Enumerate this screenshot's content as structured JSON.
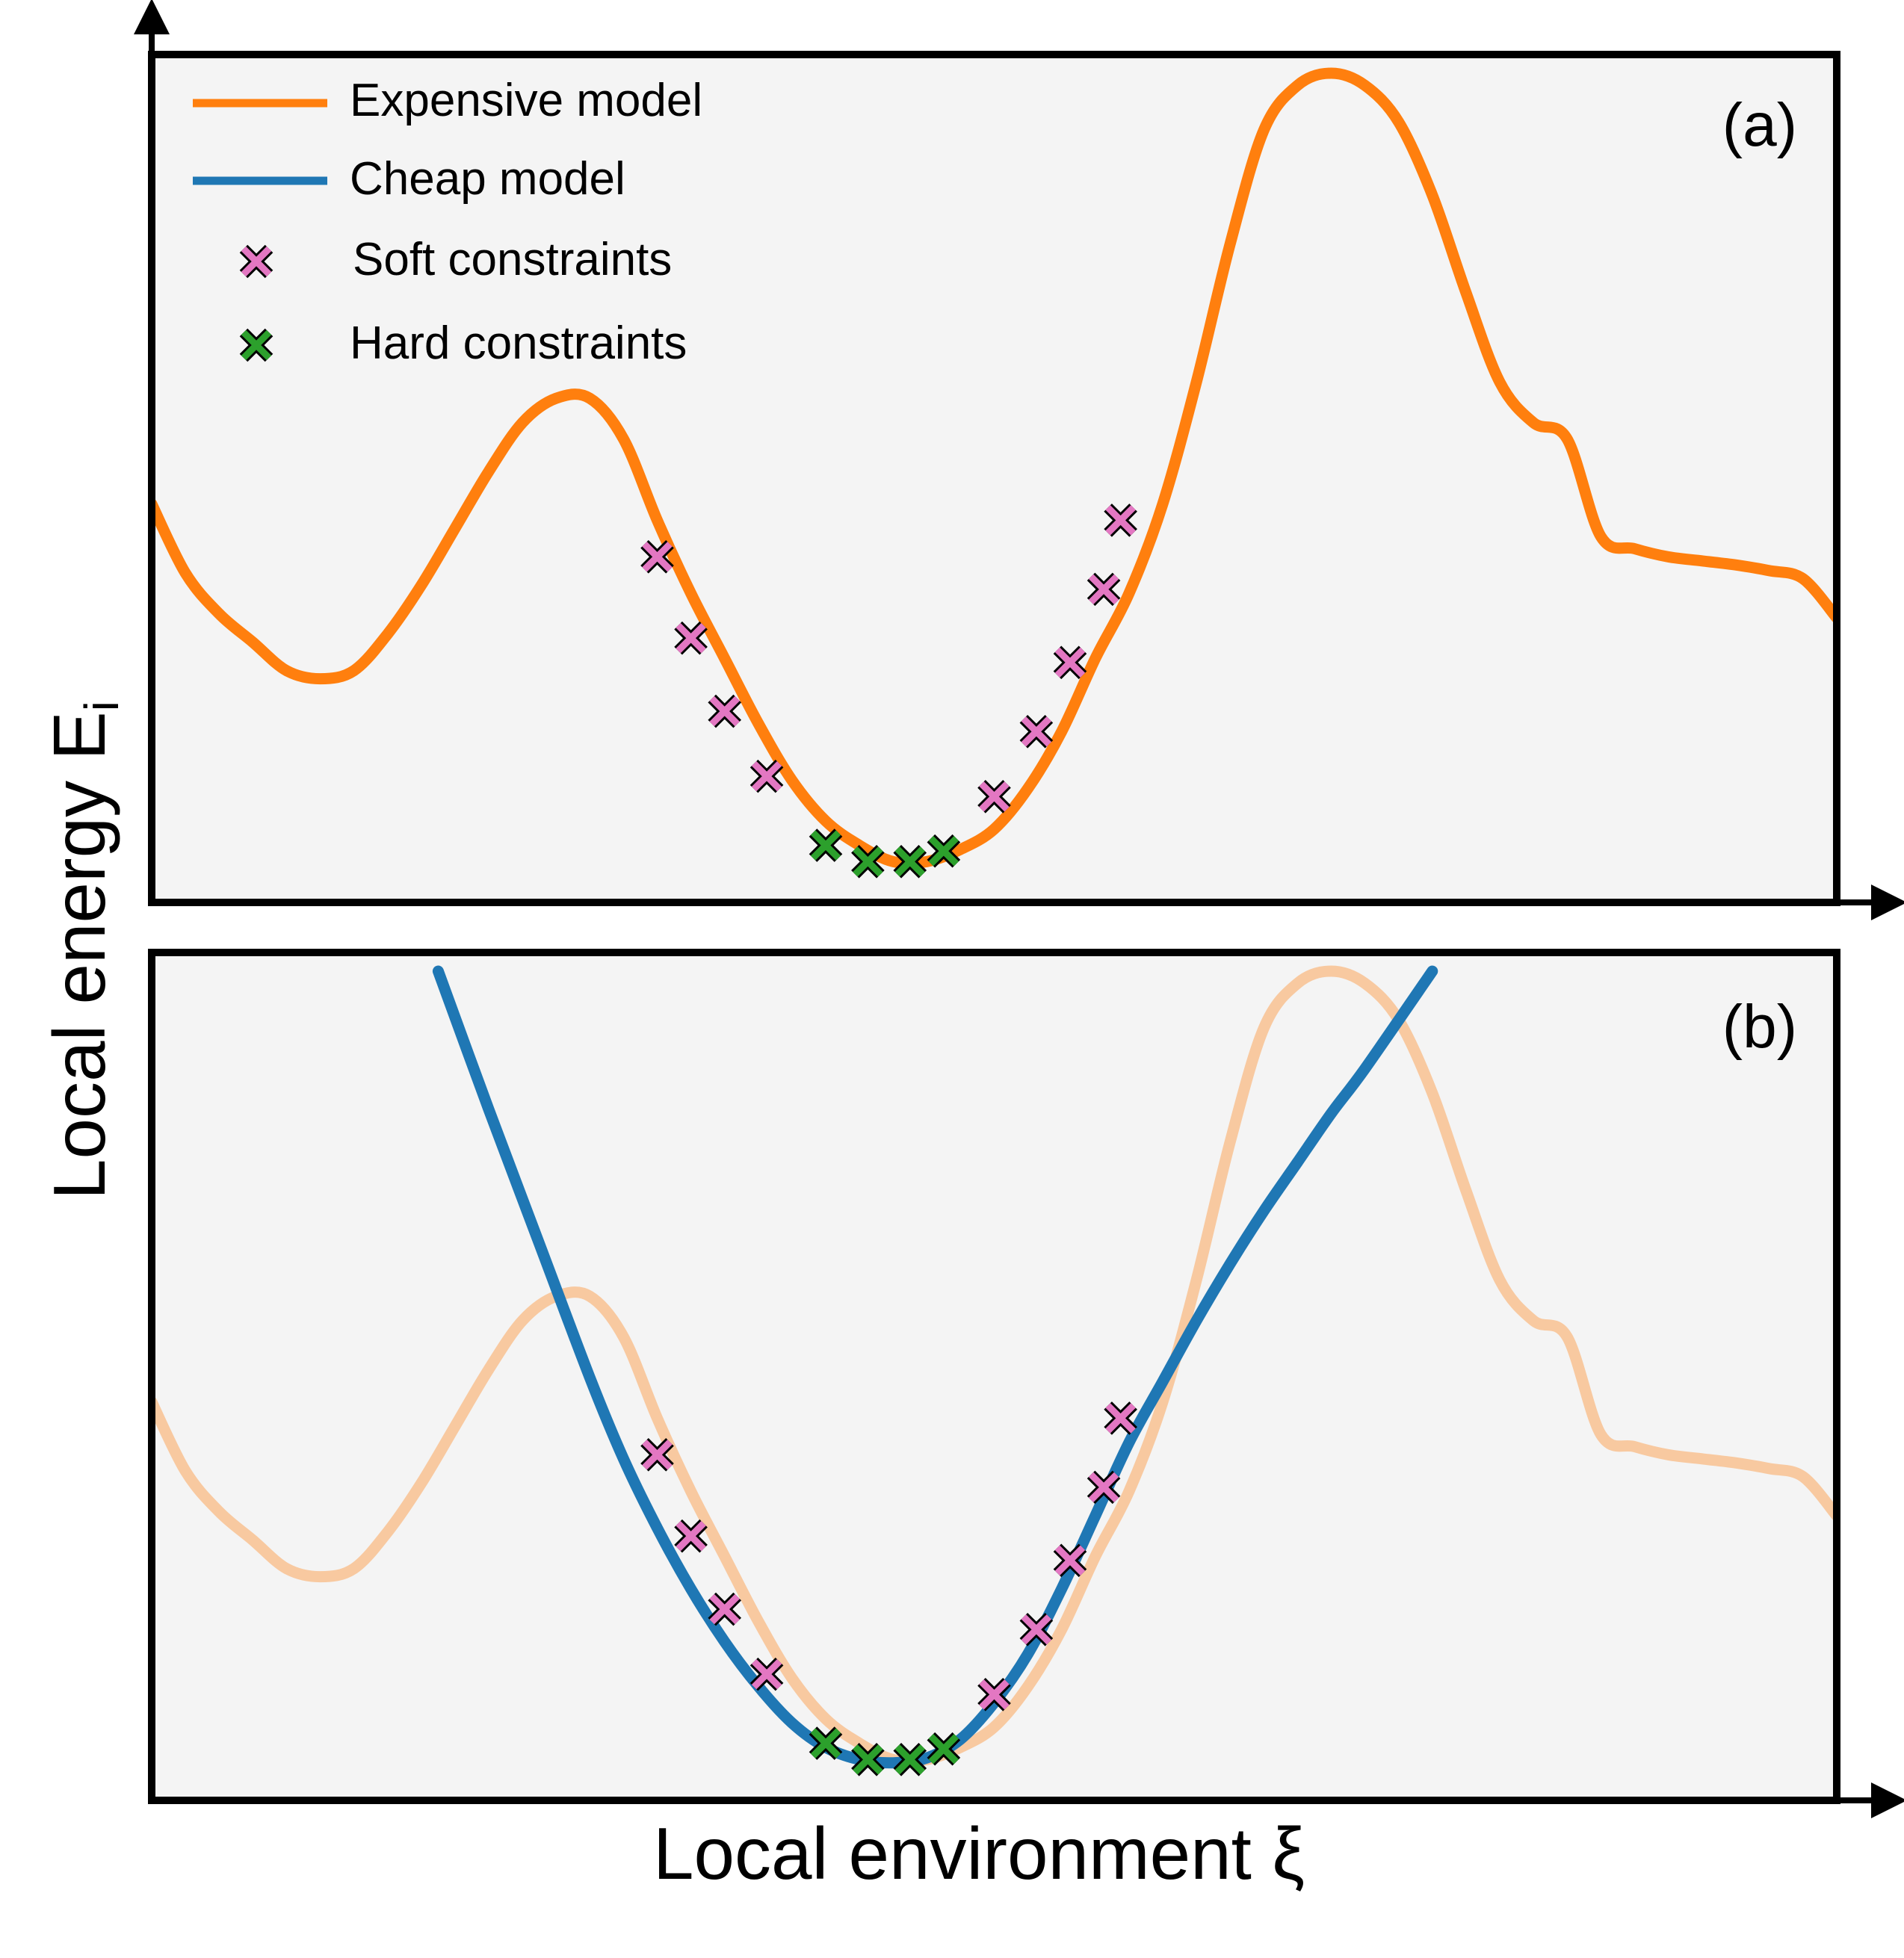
{
  "chart_data": {
    "type": "line",
    "axes": {
      "ylabel": "Local energy E",
      "ylabel_subscript": "i",
      "xlabel": "Local environment ξ",
      "xlim": [
        0,
        100
      ],
      "ylim": [
        0,
        100
      ],
      "ticks": "none"
    },
    "legend": {
      "placement": "top-left",
      "entries": [
        {
          "label": "Expensive model",
          "kind": "line",
          "color": "#ff7f0e"
        },
        {
          "label": "Cheap model",
          "kind": "line",
          "color": "#1f77b4"
        },
        {
          "label": "Soft constraints",
          "kind": "marker",
          "color": "#e377c2"
        },
        {
          "label": "Hard constraints",
          "kind": "marker",
          "color": "#2ca02c"
        }
      ]
    },
    "colors": {
      "expensive": "#ff7f0e",
      "expensive_faded": "#f8c9a0",
      "cheap": "#1f77b4",
      "soft": "#e377c2",
      "hard": "#2ca02c",
      "panel_bg": "#f4f4f4"
    },
    "panels": [
      {
        "label": "(a)",
        "series": [
          {
            "name": "Expensive model",
            "x": [
              0,
              2,
              4,
              6,
              8,
              10,
              12,
              14,
              16,
              18,
              20,
              22,
              24,
              26,
              28,
              30,
              32,
              34,
              36,
              38,
              40,
              42,
              44,
              46,
              48,
              50,
              52,
              54,
              56,
              58,
              60,
              62,
              64,
              66,
              68,
              70,
              72,
              74,
              76,
              78,
              80,
              82,
              84,
              86,
              88,
              90,
              92,
              94,
              96,
              98,
              100
            ],
            "y": [
              47,
              38.5,
              33.5,
              30,
              26.5,
              25.5,
              26.5,
              31,
              37,
              44,
              51,
              57,
              60,
              60,
              55,
              45,
              36,
              28,
              20,
              13,
              8,
              5,
              3,
              3,
              4.5,
              7,
              12,
              19,
              28,
              36,
              47,
              62,
              79,
              93,
              98.5,
              100,
              98.5,
              94,
              85,
              73,
              62,
              57,
              55,
              43,
              41.5,
              40.5,
              40,
              39.5,
              38.8,
              37.8,
              33
            ]
          }
        ],
        "soft_constraints": [
          [
            30,
            40.5
          ],
          [
            32,
            30.5
          ],
          [
            34,
            21.5
          ],
          [
            36.5,
            13.5
          ],
          [
            50,
            11
          ],
          [
            52.5,
            19
          ],
          [
            54.5,
            27.5
          ],
          [
            56.5,
            36.5
          ],
          [
            57.5,
            45
          ]
        ],
        "hard_constraints": [
          [
            40,
            5
          ],
          [
            42.5,
            3
          ],
          [
            45,
            3
          ],
          [
            47,
            4.3
          ]
        ]
      },
      {
        "label": "(b)",
        "series": [
          {
            "name": "Expensive model",
            "x": [
              0,
              2,
              4,
              6,
              8,
              10,
              12,
              14,
              16,
              18,
              20,
              22,
              24,
              26,
              28,
              30,
              32,
              34,
              36,
              38,
              40,
              42,
              44,
              46,
              48,
              50,
              52,
              54,
              56,
              58,
              60,
              62,
              64,
              66,
              68,
              70,
              72,
              74,
              76,
              78,
              80,
              82,
              84,
              86,
              88,
              90,
              92,
              94,
              96,
              98,
              100
            ],
            "y": [
              47,
              38.5,
              33.5,
              30,
              26.5,
              25.5,
              26.5,
              31,
              37,
              44,
              51,
              57,
              60,
              60,
              55,
              45,
              36,
              28,
              20,
              13,
              8,
              5,
              3,
              3,
              4.5,
              7,
              12,
              19,
              28,
              36,
              47,
              62,
              79,
              93,
              98.5,
              100,
              98.5,
              94,
              85,
              73,
              62,
              57,
              55,
              43,
              41.5,
              40.5,
              40,
              39.5,
              38.8,
              37.8,
              33
            ]
          },
          {
            "name": "Cheap model",
            "x": [
              17,
              20,
              23,
              26,
              28,
              30,
              32,
              34,
              36,
              38,
              40,
              42,
              44,
              46,
              48,
              50,
              52,
              54,
              56,
              58,
              60,
              62,
              64,
              66,
              68,
              70,
              72,
              76
            ],
            "y": [
              100,
              83,
              66.5,
              50,
              40,
              31.5,
              24,
              17.5,
              12,
              7.5,
              4.5,
              3,
              2.6,
              3.2,
              5.5,
              10,
              16,
              24,
              33,
              42,
              49.5,
              57,
              64,
              70.5,
              76.5,
              82.5,
              88,
              100
            ]
          }
        ],
        "soft_constraints": [
          [
            30,
            40.5
          ],
          [
            32,
            30.5
          ],
          [
            34,
            21.5
          ],
          [
            36.5,
            13.5
          ],
          [
            50,
            11
          ],
          [
            52.5,
            19
          ],
          [
            54.5,
            27.5
          ],
          [
            56.5,
            36.5
          ],
          [
            57.5,
            45
          ]
        ],
        "hard_constraints": [
          [
            40,
            5
          ],
          [
            42.5,
            3
          ],
          [
            45,
            3
          ],
          [
            47,
            4.3
          ]
        ]
      }
    ]
  }
}
